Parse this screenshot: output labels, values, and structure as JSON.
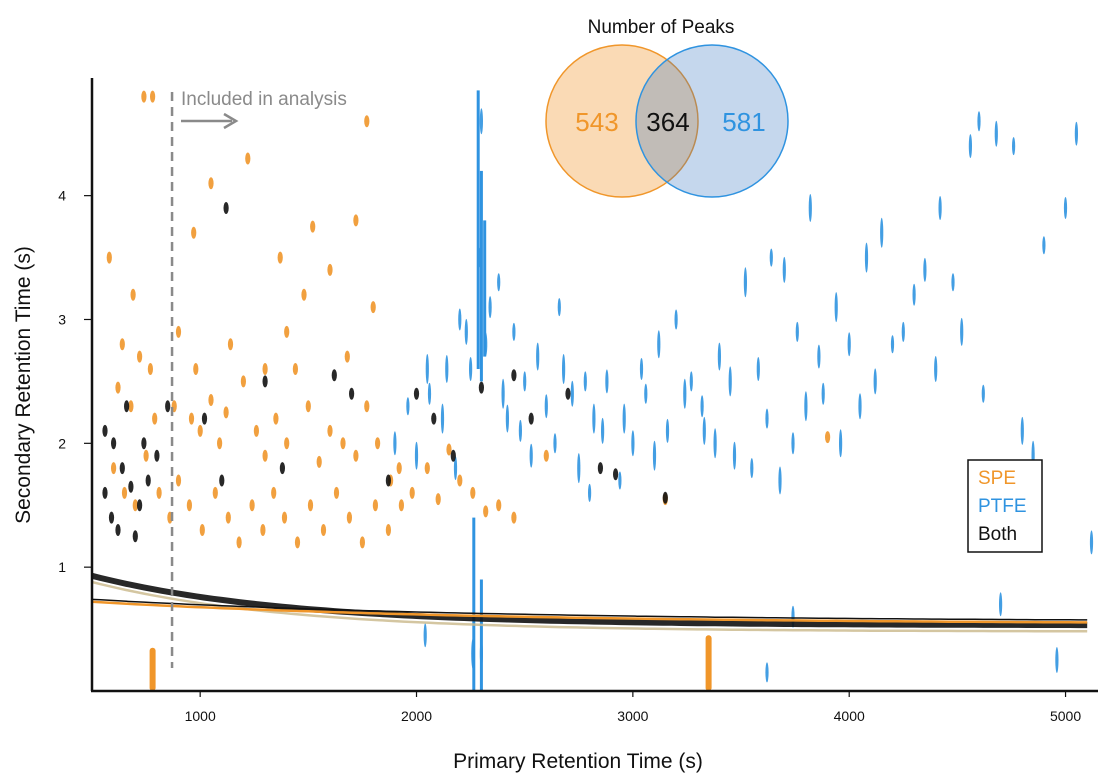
{
  "chart_data": {
    "type": "scatter",
    "xlabel": "Primary Retention Time (s)",
    "ylabel": "Secondary Retention Time (s)",
    "xlim": [
      500,
      5150
    ],
    "ylim": [
      0,
      4.95
    ],
    "x_ticks": [
      {
        "value": 1000,
        "label": "1000"
      },
      {
        "value": 2000,
        "label": "2000"
      },
      {
        "value": 3000,
        "label": "3000"
      },
      {
        "value": 4000,
        "label": "4000"
      },
      {
        "value": 5000,
        "label": "5000"
      }
    ],
    "y_ticks": [
      {
        "value": 1,
        "label": "1"
      },
      {
        "value": 2,
        "label": "2"
      },
      {
        "value": 3,
        "label": "3"
      },
      {
        "value": 4,
        "label": "4"
      }
    ],
    "grid": false,
    "legend_position": "right",
    "colors": {
      "SPE": "#f0962a",
      "PTFE": "#2f93e0",
      "Both": "#111111"
    },
    "series": [
      {
        "name": "SPE",
        "points": [
          [
            740,
            4.8
          ],
          [
            780,
            4.8
          ],
          [
            580,
            3.5
          ],
          [
            690,
            3.2
          ],
          [
            720,
            2.7
          ],
          [
            770,
            2.6
          ],
          [
            620,
            2.45
          ],
          [
            680,
            2.3
          ],
          [
            790,
            2.2
          ],
          [
            880,
            2.3
          ],
          [
            960,
            2.2
          ],
          [
            1000,
            2.1
          ],
          [
            1050,
            2.35
          ],
          [
            1090,
            2.0
          ],
          [
            1120,
            2.25
          ],
          [
            1200,
            2.5
          ],
          [
            1260,
            2.1
          ],
          [
            1300,
            1.9
          ],
          [
            1350,
            2.2
          ],
          [
            1400,
            2.0
          ],
          [
            1440,
            2.6
          ],
          [
            1500,
            2.3
          ],
          [
            1550,
            1.85
          ],
          [
            1600,
            2.1
          ],
          [
            1660,
            2.0
          ],
          [
            1720,
            1.9
          ],
          [
            1770,
            2.3
          ],
          [
            1820,
            2.0
          ],
          [
            1880,
            1.7
          ],
          [
            1930,
            1.5
          ],
          [
            1980,
            1.6
          ],
          [
            2050,
            1.8
          ],
          [
            2100,
            1.55
          ],
          [
            2150,
            1.95
          ],
          [
            2200,
            1.7
          ],
          [
            2260,
            1.6
          ],
          [
            2320,
            1.45
          ],
          [
            2380,
            1.5
          ],
          [
            2450,
            1.4
          ],
          [
            2600,
            1.9
          ],
          [
            600,
            1.8
          ],
          [
            650,
            1.6
          ],
          [
            700,
            1.5
          ],
          [
            750,
            1.9
          ],
          [
            810,
            1.6
          ],
          [
            860,
            1.4
          ],
          [
            900,
            1.7
          ],
          [
            950,
            1.5
          ],
          [
            1010,
            1.3
          ],
          [
            1070,
            1.6
          ],
          [
            1130,
            1.4
          ],
          [
            1180,
            1.2
          ],
          [
            1240,
            1.5
          ],
          [
            1290,
            1.3
          ],
          [
            1340,
            1.6
          ],
          [
            1390,
            1.4
          ],
          [
            1450,
            1.2
          ],
          [
            1510,
            1.5
          ],
          [
            1570,
            1.3
          ],
          [
            1630,
            1.6
          ],
          [
            1690,
            1.4
          ],
          [
            1750,
            1.2
          ],
          [
            1810,
            1.5
          ],
          [
            1870,
            1.3
          ],
          [
            1920,
            1.8
          ],
          [
            1400,
            2.9
          ],
          [
            1480,
            3.2
          ],
          [
            1800,
            3.1
          ],
          [
            1050,
            4.1
          ],
          [
            970,
            3.7
          ],
          [
            1220,
            4.3
          ],
          [
            1370,
            3.5
          ],
          [
            1520,
            3.75
          ],
          [
            1600,
            3.4
          ],
          [
            1770,
            4.6
          ],
          [
            640,
            2.8
          ],
          [
            900,
            2.9
          ],
          [
            1140,
            2.8
          ],
          [
            1300,
            2.6
          ],
          [
            1680,
            2.7
          ],
          [
            1720,
            3.8
          ],
          [
            980,
            2.6
          ],
          [
            3150,
            1.55
          ],
          [
            3900,
            2.05
          ]
        ]
      },
      {
        "name": "PTFE",
        "points": [
          [
            2300,
            4.6
          ],
          [
            2290,
            3.5
          ],
          [
            2320,
            2.8
          ],
          [
            2250,
            2.6
          ],
          [
            2400,
            2.4
          ],
          [
            2480,
            2.1
          ],
          [
            2530,
            1.9
          ],
          [
            2600,
            2.3
          ],
          [
            2680,
            2.6
          ],
          [
            2750,
            1.8
          ],
          [
            2820,
            2.2
          ],
          [
            2880,
            2.5
          ],
          [
            2940,
            1.7
          ],
          [
            3000,
            2.0
          ],
          [
            3060,
            2.4
          ],
          [
            3120,
            2.8
          ],
          [
            3200,
            3.0
          ],
          [
            3270,
            2.5
          ],
          [
            3330,
            2.1
          ],
          [
            3400,
            2.7
          ],
          [
            3470,
            1.9
          ],
          [
            3520,
            3.3
          ],
          [
            3580,
            2.6
          ],
          [
            3640,
            3.5
          ],
          [
            3700,
            3.4
          ],
          [
            3760,
            2.9
          ],
          [
            3820,
            3.9
          ],
          [
            3880,
            2.4
          ],
          [
            3940,
            3.1
          ],
          [
            4000,
            2.8
          ],
          [
            4080,
            3.5
          ],
          [
            4150,
            3.7
          ],
          [
            4250,
            2.9
          ],
          [
            4350,
            3.4
          ],
          [
            4420,
            3.9
          ],
          [
            4480,
            3.3
          ],
          [
            4560,
            4.4
          ],
          [
            4600,
            4.6
          ],
          [
            4680,
            4.5
          ],
          [
            4760,
            4.4
          ],
          [
            4900,
            3.6
          ],
          [
            5000,
            3.9
          ],
          [
            5050,
            4.5
          ],
          [
            2050,
            2.6
          ],
          [
            2120,
            2.2
          ],
          [
            2180,
            1.8
          ],
          [
            2230,
            2.9
          ],
          [
            2380,
            3.3
          ],
          [
            2450,
            2.9
          ],
          [
            2560,
            2.7
          ],
          [
            2640,
            2.0
          ],
          [
            2720,
            2.4
          ],
          [
            2800,
            1.6
          ],
          [
            2860,
            2.1
          ],
          [
            2960,
            2.2
          ],
          [
            3040,
            2.6
          ],
          [
            3100,
            1.9
          ],
          [
            3160,
            2.1
          ],
          [
            3240,
            2.4
          ],
          [
            3320,
            2.3
          ],
          [
            3380,
            2.0
          ],
          [
            3450,
            2.5
          ],
          [
            3550,
            1.8
          ],
          [
            3620,
            2.2
          ],
          [
            3680,
            1.7
          ],
          [
            3740,
            2.0
          ],
          [
            3800,
            2.3
          ],
          [
            3860,
            2.7
          ],
          [
            3960,
            2.0
          ],
          [
            4050,
            2.3
          ],
          [
            4120,
            2.5
          ],
          [
            4200,
            2.8
          ],
          [
            4300,
            3.2
          ],
          [
            4400,
            2.6
          ],
          [
            4520,
            2.9
          ],
          [
            4620,
            2.4
          ],
          [
            4700,
            1.4
          ],
          [
            4800,
            2.1
          ],
          [
            4850,
            1.9
          ],
          [
            1900,
            2.0
          ],
          [
            1960,
            2.3
          ],
          [
            2000,
            1.9
          ],
          [
            2060,
            2.4
          ],
          [
            2140,
            2.6
          ],
          [
            2200,
            3.0
          ],
          [
            2340,
            3.1
          ],
          [
            2420,
            2.2
          ],
          [
            2500,
            2.5
          ],
          [
            2660,
            3.1
          ],
          [
            2780,
            2.5
          ],
          [
            5120,
            1.2
          ],
          [
            2040,
            0.45
          ],
          [
            2260,
            0.3
          ],
          [
            2300,
            0.3
          ],
          [
            3620,
            0.15
          ],
          [
            3740,
            0.6
          ],
          [
            4700,
            0.7
          ],
          [
            4960,
            0.25
          ]
        ]
      },
      {
        "name": "Both",
        "points": [
          [
            1120,
            3.9
          ],
          [
            560,
            2.1
          ],
          [
            600,
            2.0
          ],
          [
            640,
            1.8
          ],
          [
            680,
            1.65
          ],
          [
            720,
            1.5
          ],
          [
            560,
            1.6
          ],
          [
            620,
            1.3
          ],
          [
            700,
            1.25
          ],
          [
            760,
            1.7
          ],
          [
            800,
            1.9
          ],
          [
            850,
            2.3
          ],
          [
            1020,
            2.2
          ],
          [
            1100,
            1.7
          ],
          [
            1300,
            2.5
          ],
          [
            1380,
            1.8
          ],
          [
            1620,
            2.55
          ],
          [
            1700,
            2.4
          ],
          [
            1870,
            1.7
          ],
          [
            2000,
            2.4
          ],
          [
            2080,
            2.2
          ],
          [
            2170,
            1.9
          ],
          [
            2300,
            2.45
          ],
          [
            2450,
            2.55
          ],
          [
            2530,
            2.2
          ],
          [
            2700,
            2.4
          ],
          [
            2850,
            1.8
          ],
          [
            2920,
            1.75
          ],
          [
            3150,
            1.56
          ],
          [
            590,
            1.4
          ],
          [
            660,
            2.3
          ],
          [
            740,
            2.0
          ]
        ]
      }
    ]
  },
  "annotation": {
    "text": "Included in analysis",
    "x": 870
  },
  "venn": {
    "title": "Number of Peaks",
    "left_only": "543",
    "overlap": "364",
    "right_only": "581"
  },
  "legend": {
    "items": [
      {
        "label": "SPE",
        "color": "#f0962a"
      },
      {
        "label": "PTFE",
        "color": "#2f93e0"
      },
      {
        "label": "Both",
        "color": "#111111"
      }
    ]
  }
}
